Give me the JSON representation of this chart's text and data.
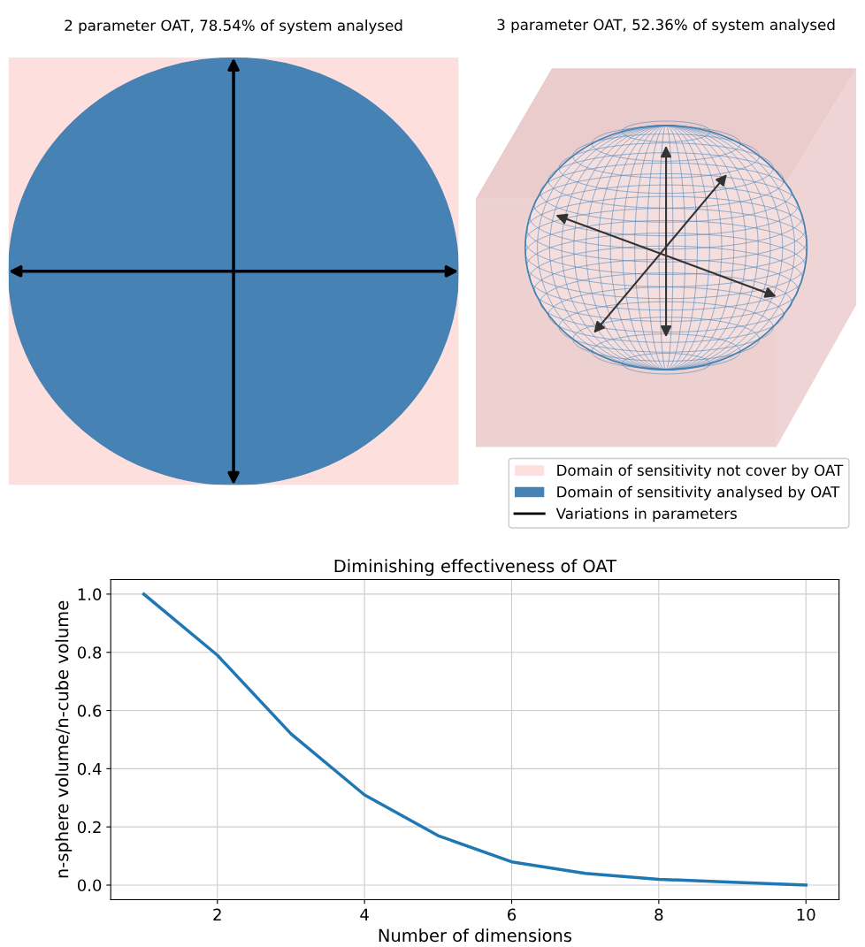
{
  "chart_data": [
    {
      "type": "other",
      "title": "2 parameter OAT, 78.54% of system analysed"
    },
    {
      "type": "other",
      "title": "3 parameter OAT, 52.36% of system analysed",
      "legend": "bottom right",
      "series": [
        {
          "name": "Domain of sensitivity not cover by OAT",
          "color": "#fde0dd",
          "type": "area"
        },
        {
          "name": "Domain of sensitivity analysed by OAT",
          "color": "#4682b4",
          "type": "area"
        },
        {
          "name": "Variations in parameters",
          "color": "#000000",
          "type": "line"
        }
      ]
    },
    {
      "type": "line",
      "title": "Diminishing effectiveness of OAT",
      "xlabel": "Number of dimensions",
      "ylabel": "n-sphere volume/n-cube volume",
      "x": [
        1,
        2,
        3,
        4,
        5,
        6,
        7,
        8,
        9,
        10
      ],
      "series": [
        {
          "color": "#1f77b4",
          "values": [
            1.0,
            0.79,
            0.52,
            0.31,
            0.17,
            0.08,
            0.04,
            0.02,
            0.01,
            0.0
          ]
        }
      ],
      "xlim": [
        0.55,
        10.45
      ],
      "ylim": [
        -0.05,
        1.05
      ],
      "xticks": [
        2,
        4,
        6,
        8,
        10
      ],
      "yticks": [
        {
          "value": 0,
          "label": "0.0"
        },
        {
          "value": 0.2,
          "label": "0.2"
        },
        {
          "value": 0.4,
          "label": "0.4"
        },
        {
          "value": 0.6,
          "label": "0.6"
        },
        {
          "value": 0.8,
          "label": "0.8"
        },
        {
          "value": 1.0,
          "label": "1.0"
        }
      ],
      "grid": true,
      "marker": "none",
      "line_style": "solid"
    }
  ]
}
